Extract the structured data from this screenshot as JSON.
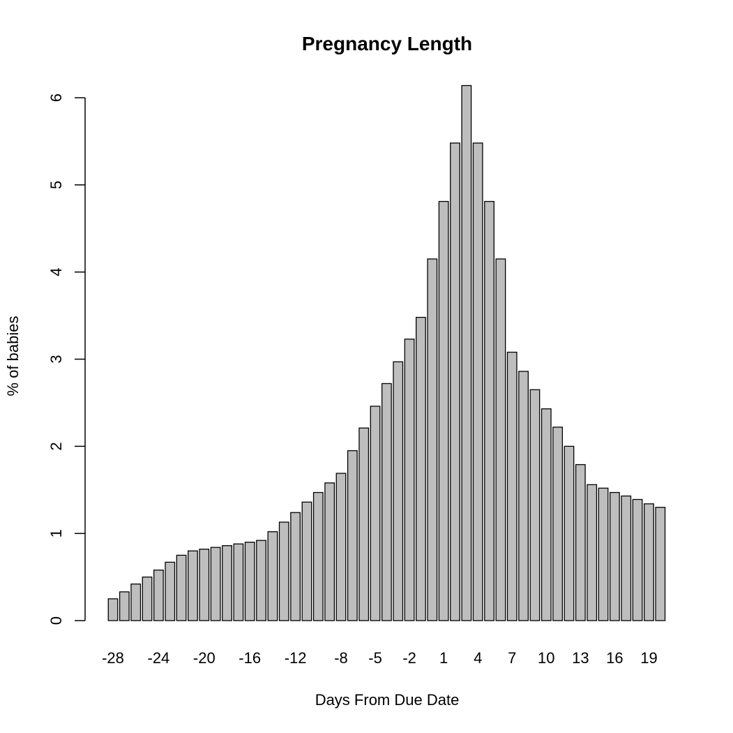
{
  "chart_data": {
    "type": "bar",
    "title": "Pregnancy Length",
    "xlabel": "Days From Due Date",
    "ylabel": "% of babies",
    "bar_color": "#bebebe",
    "ylim": [
      0,
      6
    ],
    "yticks": [
      0,
      1,
      2,
      3,
      4,
      5,
      6
    ],
    "grid": false,
    "categories": [
      -28,
      -27,
      -26,
      -25,
      -24,
      -23,
      -22,
      -21,
      -20,
      -19,
      -18,
      -17,
      -16,
      -15,
      -14,
      -13,
      -12,
      -11,
      -10,
      -9,
      -8,
      -7,
      -6,
      -5,
      -4,
      -3,
      -2,
      -1,
      0,
      1,
      2,
      3,
      4,
      5,
      6,
      7,
      8,
      9,
      10,
      11,
      12,
      13,
      14,
      15,
      16,
      17,
      18,
      19,
      20
    ],
    "labeled_ticks": [
      -28,
      -24,
      -20,
      -16,
      -12,
      -8,
      -5,
      -2,
      1,
      4,
      7,
      10,
      13,
      16,
      19
    ],
    "values": [
      0.25,
      0.33,
      0.42,
      0.5,
      0.58,
      0.67,
      0.75,
      0.8,
      0.82,
      0.84,
      0.86,
      0.88,
      0.9,
      0.92,
      1.02,
      1.13,
      1.24,
      1.36,
      1.47,
      1.58,
      1.69,
      1.95,
      2.21,
      2.46,
      2.72,
      2.97,
      3.23,
      3.48,
      4.15,
      4.81,
      5.48,
      6.14,
      5.48,
      4.81,
      4.15,
      3.08,
      2.86,
      2.65,
      2.43,
      2.22,
      2.0,
      1.79,
      1.56,
      1.52,
      1.47,
      1.43,
      1.39,
      1.34,
      1.3
    ]
  }
}
